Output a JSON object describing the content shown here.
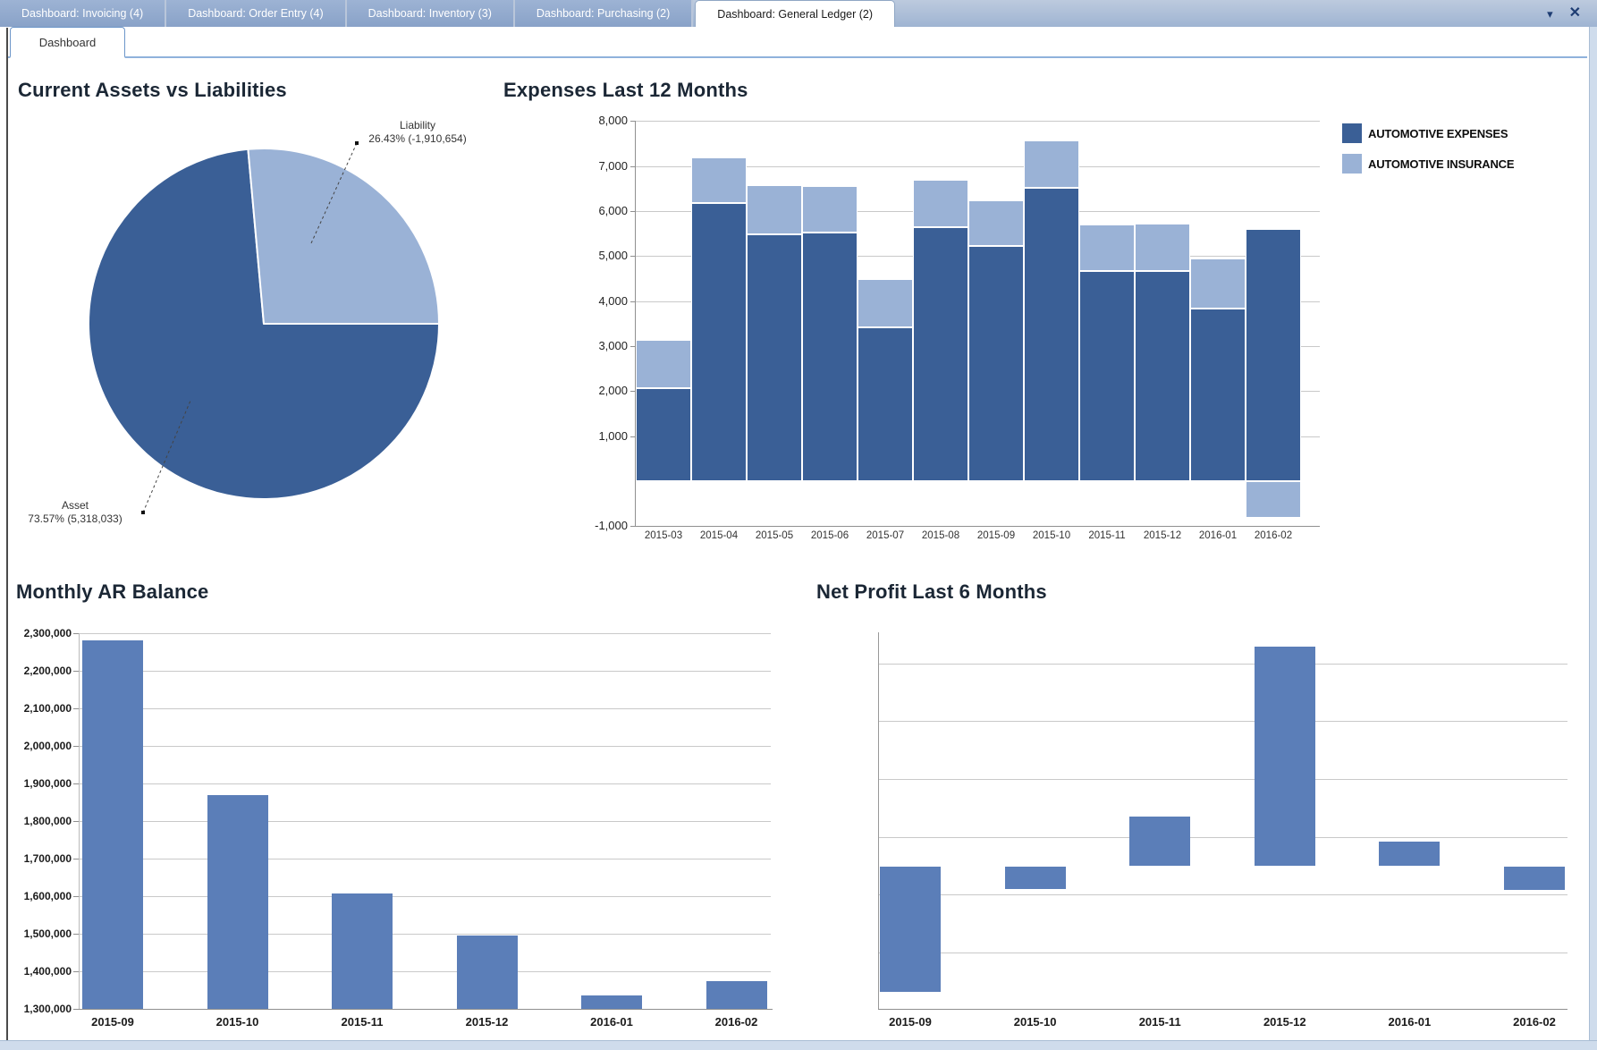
{
  "ui": {
    "tabs": [
      {
        "label": "Dashboard: Invoicing (4)",
        "active": false
      },
      {
        "label": "Dashboard: Order Entry (4)",
        "active": false
      },
      {
        "label": "Dashboard: Inventory (3)",
        "active": false
      },
      {
        "label": "Dashboard: Purchasing (2)",
        "active": false
      },
      {
        "label": "Dashboard: General Ledger (2)",
        "active": true
      }
    ],
    "controls": [
      {
        "name": "collapse-tab-group-icon",
        "glyph": "▾"
      },
      {
        "name": "close-tab-group-icon",
        "glyph": "✕"
      }
    ],
    "subtab": "Dashboard"
  },
  "colors": {
    "series_dark": "#3A5F96",
    "series_light": "#9AB2D6",
    "bar_medium": "#5B7EB8",
    "tab_inactive_text": "#FFFFFF",
    "accent_line": "#8FB2DC",
    "grid": "#C9C9C9",
    "axis": "#8F8F8F",
    "title_text": "#1B2735",
    "icon_blue": "#1E3D73"
  },
  "chart_data": [
    {
      "type": "pie",
      "title": "Current Assets vs Liabilities",
      "slices": [
        {
          "label": "Asset",
          "pct": 73.57,
          "amount": "5,318,033",
          "color_key": "series_dark"
        },
        {
          "label": "Liability",
          "pct": 26.43,
          "amount": "-1,910,654",
          "color_key": "series_light"
        }
      ],
      "labels": {
        "liability_line1": "Liability",
        "liability_line2": "26.43% (-1,910,654)",
        "asset_line1": "Asset",
        "asset_line2": "73.57% (5,318,033)"
      },
      "start_angle_deg": -5.15,
      "legend": "none"
    },
    {
      "type": "bar",
      "subtype": "stacked",
      "title": "Expenses Last 12 Months",
      "categories": [
        "2015-03",
        "2015-04",
        "2015-05",
        "2015-06",
        "2015-07",
        "2015-08",
        "2015-09",
        "2015-10",
        "2015-11",
        "2015-12",
        "2016-01",
        "2016-02"
      ],
      "series": [
        {
          "name": "AUTOMOTIVE EXPENSES",
          "color_key": "series_dark",
          "values": [
            2070,
            6170,
            5480,
            5520,
            3420,
            5650,
            5220,
            6510,
            4660,
            4670,
            3840,
            5610
          ]
        },
        {
          "name": "AUTOMOTIVE INSURANCE",
          "color_key": "series_light",
          "values": [
            1070,
            1030,
            1100,
            1030,
            1080,
            1040,
            1020,
            1050,
            1050,
            1050,
            1100,
            -820
          ]
        }
      ],
      "ylim": [
        -1000,
        8000
      ],
      "ytick_step": 1000,
      "ytick_values": [
        8000,
        7000,
        6000,
        5000,
        4000,
        3000,
        2000,
        1000,
        -1000
      ],
      "ytick_labels": [
        "8,000",
        "7,000",
        "6,000",
        "5,000",
        "4,000",
        "3,000",
        "2,000",
        "1,000",
        "-1,000"
      ],
      "grid": true,
      "legend_position": "right"
    },
    {
      "type": "bar",
      "title": "Monthly AR Balance",
      "categories": [
        "2015-09",
        "2015-10",
        "2015-11",
        "2015-12",
        "2016-01",
        "2016-02"
      ],
      "values": [
        2280000,
        1868000,
        1608000,
        1495000,
        1336000,
        1374000
      ],
      "ylim": [
        1300000,
        2300000
      ],
      "ytick_step": 100000,
      "ytick_labels": [
        "2,300,000",
        "2,200,000",
        "2,100,000",
        "2,000,000",
        "1,900,000",
        "1,800,000",
        "1,700,000",
        "1,600,000",
        "1,500,000",
        "1,400,000",
        "1,300,000"
      ],
      "grid": true,
      "color_key": "bar_medium",
      "legend": "none"
    },
    {
      "type": "bar",
      "title": "Net Profit Last 6 Months",
      "categories": [
        "2015-09",
        "2015-10",
        "2015-11",
        "2015-12",
        "2016-01",
        "2016-02"
      ],
      "values_relative": [
        -2.17,
        -0.38,
        0.85,
        3.78,
        0.41,
        -0.4
      ],
      "gridlines_relative": [
        3.5,
        2.5,
        1.5,
        0.5,
        -0.5,
        -1.5
      ],
      "baseline": 0,
      "y_axis_labels": "none",
      "note": "y axis unlabeled in source; values expressed relative to gridline spacing",
      "grid": true,
      "color_key": "bar_medium",
      "legend": "none"
    }
  ]
}
